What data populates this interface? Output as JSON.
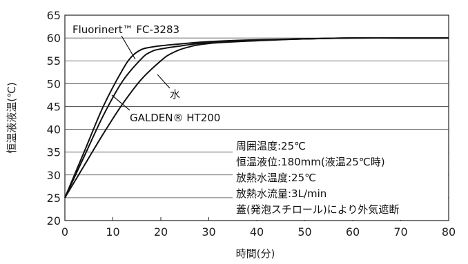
{
  "chart_data": {
    "type": "line",
    "xlabel": "時間(分)",
    "ylabel": "恒温液液温(℃)",
    "xlim": [
      0,
      80
    ],
    "ylim": [
      20,
      65
    ],
    "x_ticks": [
      0,
      10,
      20,
      30,
      40,
      50,
      60,
      70,
      80
    ],
    "y_ticks": [
      20,
      25,
      30,
      35,
      40,
      45,
      50,
      55,
      60,
      65
    ],
    "grid": "horizontal",
    "series": [
      {
        "name": "Fluorinert™ FC-3283",
        "x": [
          0,
          4,
          8,
          12,
          14,
          16,
          18,
          20,
          25,
          30,
          40,
          50,
          60,
          70,
          80
        ],
        "y": [
          25,
          35,
          45,
          53,
          56,
          57.5,
          58,
          58.3,
          58.8,
          59.2,
          59.6,
          59.8,
          60,
          60,
          60
        ]
      },
      {
        "name": "水",
        "x": [
          0,
          4,
          8,
          12,
          16,
          18,
          20,
          25,
          30,
          40,
          50,
          60,
          70,
          80
        ],
        "y": [
          25,
          34,
          43,
          50.5,
          55.5,
          57,
          57.6,
          58.4,
          59,
          59.5,
          59.8,
          60,
          60,
          60
        ]
      },
      {
        "name": "GALDEN® HT200",
        "x": [
          0,
          4,
          8,
          12,
          16,
          20,
          22,
          25,
          30,
          40,
          50,
          60,
          70,
          80
        ],
        "y": [
          25,
          32,
          39,
          45.5,
          51,
          55,
          56.5,
          57.8,
          58.8,
          59.4,
          59.8,
          60,
          60,
          60
        ]
      }
    ],
    "notes": [
      "周囲温度:25℃",
      "恒温液位:180mm(液温25℃時)",
      "放熱水温度:25℃",
      "放熱水流量:3L/min",
      "蓋(発泡スチロール)により外気遮断"
    ]
  }
}
